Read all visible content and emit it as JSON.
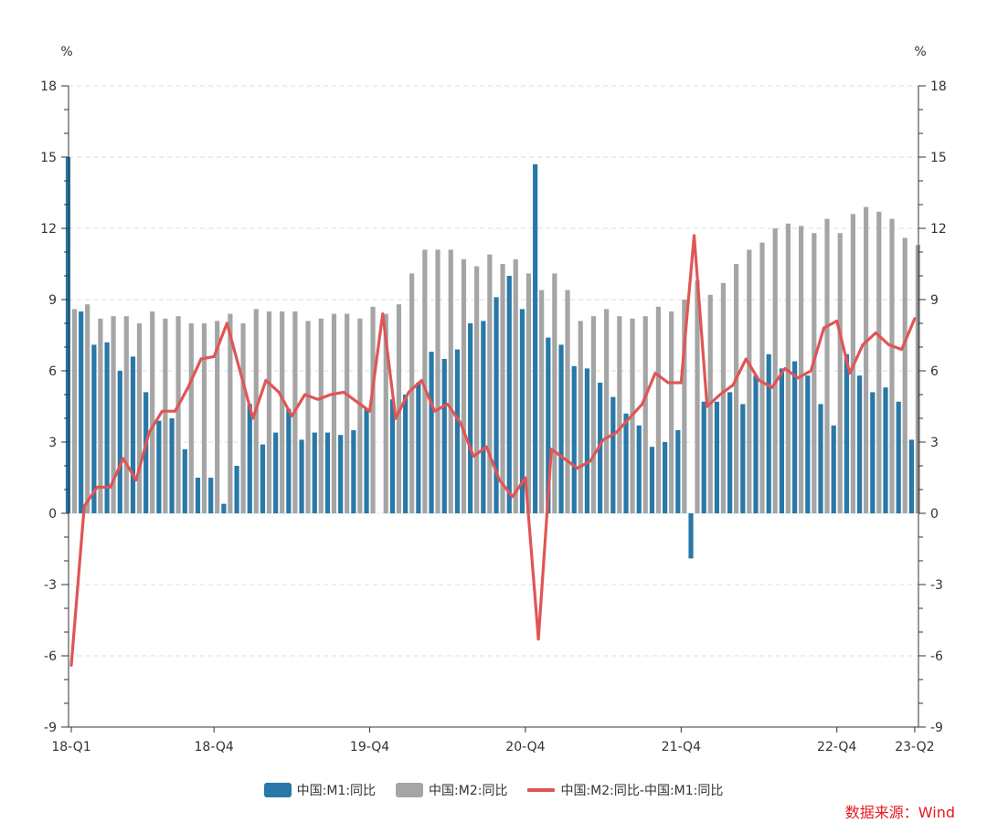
{
  "chart_data": {
    "type": "bar",
    "left_unit": "%",
    "right_unit": "%",
    "ylim": [
      -9,
      18
    ],
    "y_ticks": [
      "18",
      "15",
      "12",
      "9",
      "6",
      "3",
      "0",
      "-3",
      "-6",
      "-9"
    ],
    "y_tick_values": [
      18,
      15,
      12,
      9,
      6,
      3,
      0,
      -3,
      -6,
      -9
    ],
    "x_tick_labels": [
      "18-Q1",
      "18-Q4",
      "19-Q4",
      "20-Q4",
      "21-Q4",
      "22-Q4",
      "23-Q2"
    ],
    "x_tick_index": [
      0,
      11,
      23,
      35,
      47,
      59,
      65
    ],
    "grid": true,
    "legend_position": "bottom",
    "series": [
      {
        "name": "中国:M1:同比",
        "type": "bar",
        "color": "#2878a8",
        "values": [
          15.0,
          8.5,
          7.1,
          7.2,
          6.0,
          6.6,
          5.1,
          3.9,
          4.0,
          2.7,
          1.5,
          1.5,
          0.4,
          2.0,
          4.6,
          2.9,
          3.4,
          4.4,
          3.1,
          3.4,
          3.4,
          3.3,
          3.5,
          4.4,
          0.0,
          4.8,
          5.0,
          5.5,
          6.8,
          6.5,
          6.9,
          8.0,
          8.1,
          9.1,
          10.0,
          8.6,
          14.7,
          7.4,
          7.1,
          6.2,
          6.1,
          5.5,
          4.9,
          4.2,
          3.7,
          2.8,
          3.0,
          3.5,
          -1.9,
          4.7,
          4.7,
          5.1,
          4.6,
          5.8,
          6.7,
          6.1,
          6.4,
          5.8,
          4.6,
          3.7,
          6.7,
          5.8,
          5.1,
          5.3,
          4.7,
          3.1
        ]
      },
      {
        "name": "中国:M2:同比",
        "type": "bar",
        "color": "#a5a5a5",
        "values": [
          8.6,
          8.8,
          8.2,
          8.3,
          8.3,
          8.0,
          8.5,
          8.2,
          8.3,
          8.0,
          8.0,
          8.1,
          8.4,
          8.0,
          8.6,
          8.5,
          8.5,
          8.5,
          8.1,
          8.2,
          8.4,
          8.4,
          8.2,
          8.7,
          8.4,
          8.8,
          10.1,
          11.1,
          11.1,
          11.1,
          10.7,
          10.4,
          10.9,
          10.5,
          10.7,
          10.1,
          9.4,
          10.1,
          9.4,
          8.1,
          8.3,
          8.6,
          8.3,
          8.2,
          8.3,
          8.7,
          8.5,
          9.0,
          9.8,
          9.2,
          9.7,
          10.5,
          11.1,
          11.4,
          12.0,
          12.2,
          12.1,
          11.8,
          12.4,
          11.8,
          12.6,
          12.9,
          12.7,
          12.4,
          11.6,
          11.3
        ]
      },
      {
        "name": "中国:M2:同比-中国:M1:同比",
        "type": "line",
        "color": "#e05555",
        "values": [
          -6.4,
          0.3,
          1.1,
          1.1,
          2.3,
          1.4,
          3.4,
          4.3,
          4.3,
          5.3,
          6.5,
          6.6,
          8.0,
          6.0,
          4.0,
          5.6,
          5.1,
          4.1,
          5.0,
          4.8,
          5.0,
          5.1,
          4.7,
          4.3,
          8.4,
          4.0,
          5.1,
          5.6,
          4.3,
          4.6,
          3.8,
          2.4,
          2.8,
          1.4,
          0.7,
          1.5,
          -5.3,
          2.7,
          2.3,
          1.9,
          2.2,
          3.1,
          3.4,
          4.0,
          4.6,
          5.9,
          5.5,
          5.5,
          11.7,
          4.5,
          5.0,
          5.4,
          6.5,
          5.6,
          5.3,
          6.1,
          5.7,
          6.0,
          7.8,
          8.1,
          5.9,
          7.1,
          7.6,
          7.1,
          6.9,
          8.2
        ]
      }
    ]
  },
  "legend": {
    "m1_label": "中国:M1:同比",
    "m2_label": "中国:M2:同比",
    "spread_label": "中国:M2:同比-中国:M1:同比"
  },
  "source": "数据来源：Wind"
}
